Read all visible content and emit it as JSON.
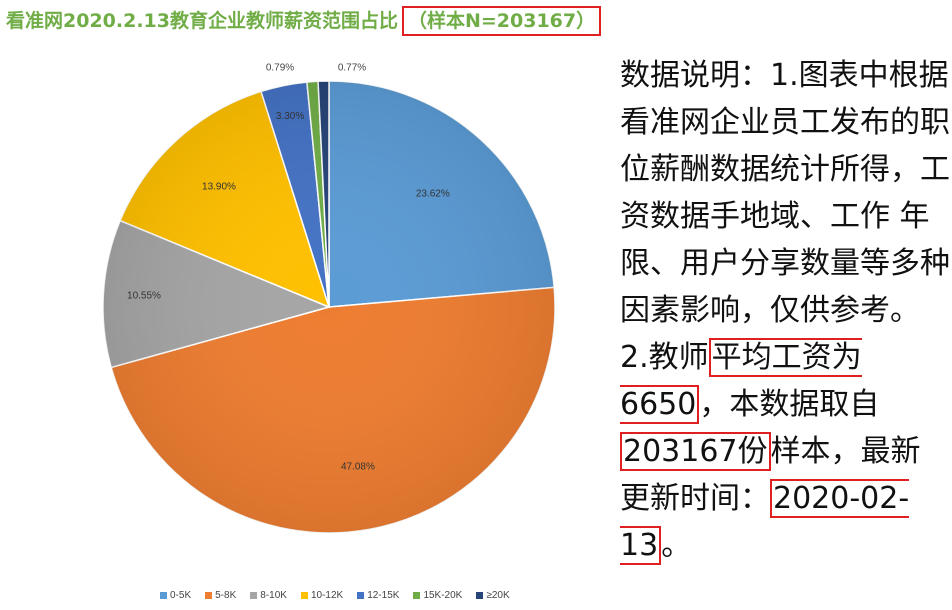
{
  "title": {
    "main": "看准网2020.2.13教育企业教师薪资范围占比",
    "sample": "（样本N=203167）"
  },
  "note": {
    "line1": "数据说明：1.图表中根据看准网企业员工发布的职位薪酬数据统计所得，工资数据手地域、工作 年限、用户分享数量等多种因素影响，仅供参考。",
    "line2_prefix": "2.教师",
    "avg_salary": "平均工资为6650",
    "line2_mid": "，本数据取自",
    "sample_count": "203167份",
    "line2_suffix": "样本，最新更新时间：",
    "update_date": "2020-02-13",
    "end": "。"
  },
  "chart_data": {
    "type": "pie",
    "categories": [
      "0-5K",
      "5-8K",
      "8-10K",
      "10-12K",
      "12-15K",
      "15K-20K",
      "≥20K"
    ],
    "values": [
      23.62,
      47.08,
      10.55,
      13.9,
      3.3,
      0.79,
      0.77
    ],
    "labels": [
      "23.62%",
      "47.08%",
      "10.55%",
      "13.90%",
      "3.30%",
      "0.79%",
      "0.77%"
    ],
    "colors": [
      "#5b9bd5",
      "#ed7d31",
      "#a5a5a5",
      "#ffc000",
      "#4472c4",
      "#70ad47",
      "#264478"
    ],
    "legend_position": "bottom",
    "start_angle": "12 o'clock",
    "direction": "clockwise"
  }
}
